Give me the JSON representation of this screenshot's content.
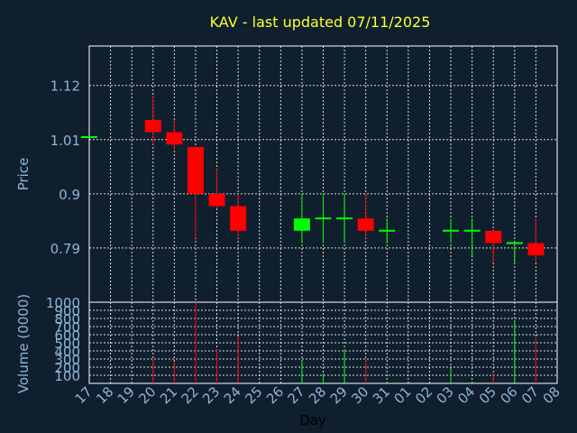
{
  "chart_data": {
    "type": "candlestick",
    "title": "KAV - last updated 07/11/2025",
    "price_axis": {
      "label": "Price",
      "ticks": [
        0.79,
        0.9,
        1.01,
        1.12
      ],
      "ylim": [
        0.68,
        1.2
      ]
    },
    "volume_axis": {
      "label": "Volume (0000)",
      "ticks": [
        100,
        200,
        300,
        400,
        500,
        600,
        700,
        800,
        900,
        1000
      ],
      "ylim": [
        0,
        1000
      ]
    },
    "x_axis": {
      "label": "Day",
      "ticks": [
        "17",
        "18",
        "19",
        "20",
        "21",
        "22",
        "23",
        "24",
        "25",
        "26",
        "27",
        "28",
        "29",
        "30",
        "31",
        "01",
        "02",
        "03",
        "04",
        "05",
        "06",
        "07",
        "08"
      ]
    },
    "up_color": "#00ff00",
    "down_color": "#ff0000",
    "candles": [
      {
        "day": "17",
        "open": 1.015,
        "high": 1.015,
        "low": 1.015,
        "close": 1.015,
        "volume": 0
      },
      {
        "day": "20",
        "open": 1.05,
        "high": 1.1,
        "low": 1.0,
        "close": 1.025,
        "volume": 300
      },
      {
        "day": "21",
        "open": 1.025,
        "high": 1.05,
        "low": 0.99,
        "close": 1.0,
        "volume": 270
      },
      {
        "day": "22",
        "open": 0.995,
        "high": 0.995,
        "low": 0.81,
        "close": 0.9,
        "volume": 1000
      },
      {
        "day": "23",
        "open": 0.9,
        "high": 0.95,
        "low": 0.87,
        "close": 0.875,
        "volume": 420
      },
      {
        "day": "24",
        "open": 0.875,
        "high": 0.9,
        "low": 0.81,
        "close": 0.825,
        "volume": 580
      },
      {
        "day": "27",
        "open": 0.825,
        "high": 0.9,
        "low": 0.8,
        "close": 0.85,
        "volume": 280
      },
      {
        "day": "28",
        "open": 0.85,
        "high": 0.9,
        "low": 0.8,
        "close": 0.85,
        "volume": 120
      },
      {
        "day": "29",
        "open": 0.85,
        "high": 0.9,
        "low": 0.8,
        "close": 0.85,
        "volume": 420
      },
      {
        "day": "30",
        "open": 0.85,
        "high": 0.9,
        "low": 0.81,
        "close": 0.825,
        "volume": 300
      },
      {
        "day": "31",
        "open": 0.825,
        "high": 0.85,
        "low": 0.8,
        "close": 0.825,
        "volume": 20
      },
      {
        "day": "03",
        "open": 0.825,
        "high": 0.85,
        "low": 0.8,
        "close": 0.825,
        "volume": 180
      },
      {
        "day": "04",
        "open": 0.825,
        "high": 0.85,
        "low": 0.775,
        "close": 0.825,
        "volume": 20
      },
      {
        "day": "05",
        "open": 0.825,
        "high": 0.825,
        "low": 0.76,
        "close": 0.8,
        "volume": 120
      },
      {
        "day": "06",
        "open": 0.8,
        "high": 0.8,
        "low": 0.76,
        "close": 0.8,
        "volume": 780
      },
      {
        "day": "07",
        "open": 0.8,
        "high": 0.85,
        "low": 0.76,
        "close": 0.775,
        "volume": 560
      }
    ]
  }
}
